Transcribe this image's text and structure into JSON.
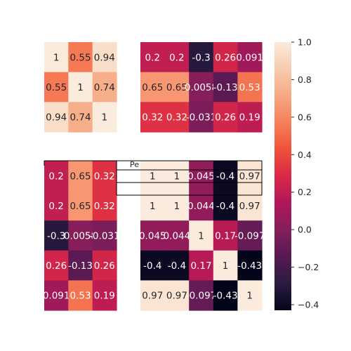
{
  "chart_data": {
    "type": "heatmap",
    "title": "",
    "colormap": "rocket",
    "colorbar": {
      "min": -0.43,
      "max": 1.0,
      "ticks": [
        "1.0",
        "0.8",
        "0.6",
        "0.4",
        "0.2",
        "0.0",
        "−0.2",
        "−0.4"
      ],
      "tick_values": [
        1.0,
        0.8,
        0.6,
        0.4,
        0.2,
        0.0,
        -0.2,
        -0.4
      ]
    },
    "panels": [
      {
        "id": "top-left",
        "values": [
          [
            1,
            0.55,
            0.94
          ],
          [
            0.55,
            1,
            0.74
          ],
          [
            0.94,
            0.74,
            1
          ]
        ],
        "labels": [
          [
            "1",
            "0.55",
            "0.94"
          ],
          [
            "0.55",
            "1",
            "0.74"
          ],
          [
            "0.94",
            "0.74",
            "1"
          ]
        ]
      },
      {
        "id": "top-right",
        "values": [
          [
            0.2,
            0.2,
            -0.3,
            0.26,
            0.091
          ],
          [
            0.65,
            0.65,
            0.0058,
            -0.13,
            0.53
          ],
          [
            0.32,
            0.32,
            -0.031,
            0.26,
            0.19
          ]
        ],
        "labels": [
          [
            "0.2",
            "0.2",
            "-0.3",
            "0.26",
            "0.091"
          ],
          [
            "0.65",
            "0.65",
            "0.0058",
            "-0.13",
            "0.53"
          ],
          [
            "0.32",
            "0.32",
            "-0.031",
            "0.26",
            "0.19"
          ]
        ]
      },
      {
        "id": "bottom-left",
        "values": [
          [
            0.2,
            0.65,
            0.32
          ],
          [
            0.2,
            0.65,
            0.32
          ],
          [
            -0.3,
            0.0058,
            -0.031
          ],
          [
            0.26,
            -0.13,
            0.26
          ],
          [
            0.091,
            0.53,
            0.19
          ]
        ],
        "labels": [
          [
            "0.2",
            "0.65",
            "0.32"
          ],
          [
            "0.2",
            "0.65",
            "0.32"
          ],
          [
            "-0.3",
            "0.0058",
            "-0.031"
          ],
          [
            "0.26",
            "-0.13",
            "0.26"
          ],
          [
            "0.091",
            "0.53",
            "0.19"
          ]
        ]
      },
      {
        "id": "bottom-right",
        "values": [
          [
            1,
            1,
            0.045,
            -0.4,
            0.97
          ],
          [
            1,
            1,
            0.044,
            -0.4,
            0.97
          ],
          [
            0.045,
            0.044,
            1,
            0.17,
            -0.097
          ],
          [
            -0.4,
            -0.4,
            0.17,
            1,
            -0.43
          ],
          [
            0.97,
            0.97,
            -0.097,
            -0.43,
            1
          ]
        ],
        "labels": [
          [
            "1",
            "1",
            "0.045",
            "-0.4",
            "0.97"
          ],
          [
            "1",
            "1",
            "0.044",
            "-0.4",
            "0.97"
          ],
          [
            "0.045",
            "0.044",
            "1",
            "0.17",
            "-0.097"
          ],
          [
            "-0.4",
            "-0.4",
            "0.17",
            "1",
            "-0.43"
          ],
          [
            "0.97",
            "0.97",
            "-0.097",
            "-0.43",
            "1"
          ]
        ]
      }
    ],
    "table_header": {
      "label": "Pe"
    }
  }
}
